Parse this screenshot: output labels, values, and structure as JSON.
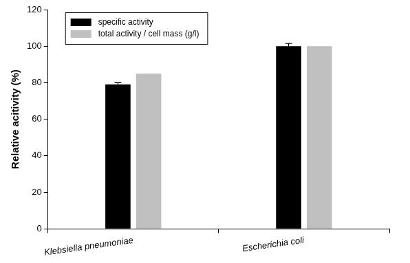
{
  "chart_data": {
    "type": "bar",
    "y_label": "Relative acitivity (%)",
    "categories": [
      "Klebsiella pneumoniae",
      "Escherichia coli"
    ],
    "series": [
      {
        "name": "specific activity",
        "color": "#000000",
        "values": [
          79,
          100
        ],
        "errors": [
          1,
          1.5
        ]
      },
      {
        "name": "total activity / cell mass (g/l)",
        "color": "#c0c0c0",
        "values": [
          85,
          100
        ]
      }
    ],
    "ylim": [
      0,
      120
    ],
    "yticks": [
      0,
      20,
      40,
      60,
      80,
      100,
      120
    ],
    "grid": false,
    "legend": "upper left"
  }
}
